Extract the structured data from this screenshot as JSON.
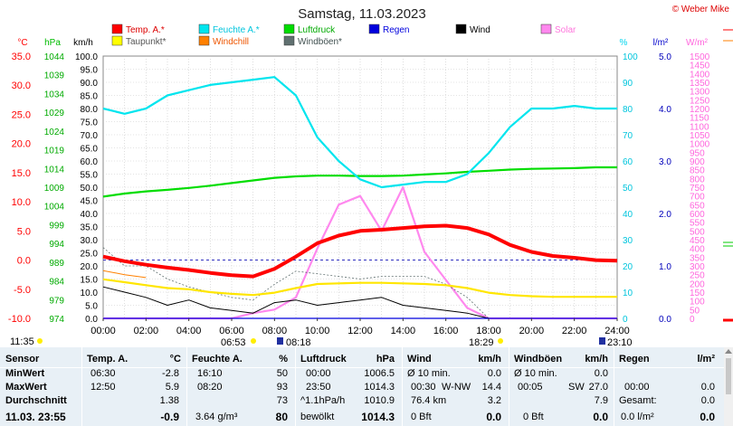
{
  "title": "Samstag, 11.03.2023",
  "copyright": "© Weber Mike",
  "legend": [
    {
      "label": "Temp. A.*",
      "color": "#ff0000"
    },
    {
      "label": "Taupunkt*",
      "color": "#ffff00"
    },
    {
      "label": "Feuchte A.*",
      "color": "#00e5ee"
    },
    {
      "label": "Windchill",
      "color": "#ff8000"
    },
    {
      "label": "Luftdruck",
      "color": "#00dd00"
    },
    {
      "label": "Windböen*",
      "color": "#607070"
    },
    {
      "label": "Regen",
      "color": "#0000dd"
    },
    {
      "label": "Wind",
      "color": "#000000"
    },
    {
      "label": "Solar",
      "color": "#ff88ee"
    }
  ],
  "axis_units": {
    "temp": "°C",
    "hpa": "hPa",
    "kmh": "km/h",
    "pct": "%",
    "rain": "l/m²",
    "solar": "W/m²"
  },
  "axis_ticks": {
    "temp": [
      "35.0",
      "30.0",
      "25.0",
      "20.0",
      "15.0",
      "10.0",
      "5.0",
      "0.0",
      "-5.0",
      "-10.0"
    ],
    "hpa": [
      "1044",
      "1039",
      "1034",
      "1029",
      "1024",
      "1019",
      "1014",
      "1009",
      "1004",
      "999",
      "994",
      "989",
      "984",
      "979",
      "974"
    ],
    "kmh": [
      "100.0",
      "95.0",
      "90.0",
      "85.0",
      "80.0",
      "75.0",
      "70.0",
      "65.0",
      "60.0",
      "55.0",
      "50.0",
      "45.0",
      "40.0",
      "35.0",
      "30.0",
      "25.0",
      "20.0",
      "15.0",
      "10.0",
      "5.0",
      "0.0"
    ],
    "pct": [
      "100",
      "90",
      "80",
      "70",
      "60",
      "50",
      "40",
      "30",
      "20",
      "10",
      "0"
    ],
    "rain": [
      "5.0",
      "4.0",
      "3.0",
      "2.0",
      "1.0",
      "0.0"
    ],
    "solar": [
      "1500",
      "1450",
      "1400",
      "1350",
      "1300",
      "1250",
      "1200",
      "1150",
      "1100",
      "1050",
      "1000",
      "950",
      "900",
      "850",
      "800",
      "750",
      "700",
      "650",
      "600",
      "550",
      "500",
      "450",
      "400",
      "350",
      "300",
      "250",
      "200",
      "150",
      "100",
      "50",
      "0"
    ]
  },
  "time_labels": [
    "00:00",
    "02:00",
    "04:00",
    "06:00",
    "08:00",
    "10:00",
    "12:00",
    "14:00",
    "16:00",
    "18:00",
    "20:00",
    "22:00",
    "24:00"
  ],
  "sun_events": {
    "now": "11:35",
    "sunrise": "06:53",
    "moon_1": "08:18",
    "sunset": "18:29",
    "moon_2": "23:10"
  },
  "chart_data": {
    "type": "line",
    "x_unit": "hours",
    "x": [
      0,
      1,
      2,
      3,
      4,
      5,
      6,
      7,
      8,
      9,
      10,
      11,
      12,
      13,
      14,
      15,
      16,
      17,
      18,
      19,
      20,
      21,
      22,
      23,
      24
    ],
    "series": [
      {
        "name": "Temp. A.*",
        "axis": "°C",
        "values": [
          0.6,
          -0.2,
          -0.8,
          -1.3,
          -1.7,
          -2.2,
          -2.6,
          -2.8,
          -1.5,
          0.6,
          2.9,
          4.2,
          5.0,
          5.2,
          5.5,
          5.8,
          5.9,
          5.5,
          4.4,
          2.6,
          1.4,
          0.7,
          0.4,
          0.0,
          -0.1
        ]
      },
      {
        "name": "Taupunkt*",
        "axis": "°C",
        "values": [
          -3.3,
          -3.8,
          -4.3,
          -4.8,
          -5.0,
          -5.5,
          -5.8,
          -6.0,
          -5.6,
          -4.8,
          -4.1,
          -4.0,
          -3.9,
          -3.9,
          -4.0,
          -4.1,
          -4.3,
          -4.8,
          -5.6,
          -6.0,
          -6.2,
          -6.3,
          -6.3,
          -6.3,
          -6.3
        ]
      },
      {
        "name": "Windchill",
        "axis": "°C",
        "values": [
          -1.8,
          -2.5,
          -3.0,
          null,
          null,
          null,
          null,
          null,
          null,
          null,
          null,
          null,
          null,
          null,
          null,
          null,
          null,
          null,
          null,
          null,
          null,
          null,
          null,
          null,
          null
        ]
      },
      {
        "name": "Feuchte A.*",
        "axis": "%",
        "values": [
          80,
          78,
          80,
          85,
          87,
          89,
          90,
          91,
          92,
          85,
          69,
          60,
          53,
          50,
          51,
          52,
          52,
          55,
          63,
          73,
          80,
          80,
          81,
          80,
          80
        ]
      },
      {
        "name": "Luftdruck",
        "axis": "hPa",
        "values": [
          1006.5,
          1007.3,
          1007.9,
          1008.3,
          1008.8,
          1009.4,
          1010.1,
          1010.8,
          1011.5,
          1011.9,
          1012.1,
          1012.1,
          1012.0,
          1012.0,
          1012.1,
          1012.4,
          1012.7,
          1013.1,
          1013.4,
          1013.7,
          1013.9,
          1014.0,
          1014.1,
          1014.3,
          1014.3
        ]
      },
      {
        "name": "Wind",
        "axis": "km/h",
        "values": [
          12,
          10,
          8,
          5,
          7,
          4,
          3,
          2,
          6,
          7,
          5,
          6,
          7,
          8,
          5,
          4,
          3,
          2,
          0,
          0,
          0,
          0,
          0,
          0,
          0
        ]
      },
      {
        "name": "Windböen*",
        "axis": "km/h",
        "values": [
          27,
          20,
          20,
          15,
          12,
          10,
          8,
          7,
          13,
          18,
          17,
          16,
          15,
          16,
          16,
          16,
          13,
          8,
          0,
          0,
          0,
          0,
          0,
          0,
          0
        ]
      },
      {
        "name": "Regen",
        "axis": "l/m²",
        "values": [
          0,
          0,
          0,
          0,
          0,
          0,
          0,
          0,
          0,
          0,
          0,
          0,
          0,
          0,
          0,
          0,
          0,
          0,
          0,
          0,
          0,
          0,
          0,
          0,
          0
        ]
      },
      {
        "name": "Solar",
        "axis": "W/m²",
        "values": [
          0,
          0,
          0,
          0,
          0,
          0,
          0,
          30,
          50,
          120,
          400,
          650,
          700,
          500,
          750,
          380,
          220,
          60,
          0,
          0,
          0,
          0,
          0,
          0,
          0
        ]
      }
    ]
  },
  "table": {
    "headers": {
      "sensor": "Sensor",
      "temp": "Temp. A.",
      "temp_unit": "°C",
      "feuchte": "Feuchte A.",
      "feuchte_unit": "%",
      "luft": "Luftdruck",
      "luft_unit": "hPa",
      "wind": "Wind",
      "wind_unit": "km/h",
      "boeen": "Windböen",
      "boeen_unit": "km/h",
      "regen": "Regen",
      "regen_unit": "l/m²"
    },
    "min": {
      "label": "MinWert",
      "temp_time": "06:30",
      "temp_val": "-2.8",
      "feuchte_time": "16:10",
      "feuchte_val": "50",
      "luft_time": "00:00",
      "luft_val": "1006.5",
      "wind_desc": "Ø 10 min.",
      "wind_val": "0.0",
      "boeen_desc": "Ø 10 min.",
      "boeen_val": "0.0"
    },
    "max": {
      "label": "MaxWert",
      "temp_time": "12:50",
      "temp_val": "5.9",
      "feuchte_time": "08:20",
      "feuchte_val": "93",
      "luft_time": "23:50",
      "luft_val": "1014.3",
      "wind_time": "00:30",
      "wind_dir": "W-NW",
      "wind_val": "14.4",
      "boeen_time": "00:05",
      "boeen_dir": "SW",
      "boeen_val": "27.0",
      "regen_time": "00:00",
      "regen_val": "0.0"
    },
    "avg": {
      "label": "Durchschnitt",
      "temp_val": "1.38",
      "feuchte_val": "73",
      "luft_trend": "^1.1hPa/h",
      "luft_val": "1010.9",
      "wind_dist": "76.4 km",
      "wind_val": "3.2",
      "boeen_val": "7.9",
      "regen_label": "Gesamt:",
      "regen_val": "0.0"
    },
    "current": {
      "label": "11.03. 23:55",
      "temp_val": "-0.9",
      "feuchte_abs": "3.64 g/m³",
      "feuchte_val": "80",
      "luft_desc": "bewölkt",
      "luft_val": "1014.3",
      "wind_bft": "0 Bft",
      "wind_val": "0.0",
      "boeen_bft": "0 Bft",
      "boeen_val": "0.0",
      "regen_rate": "0.0 l/m²",
      "regen_val": "0.0"
    }
  }
}
